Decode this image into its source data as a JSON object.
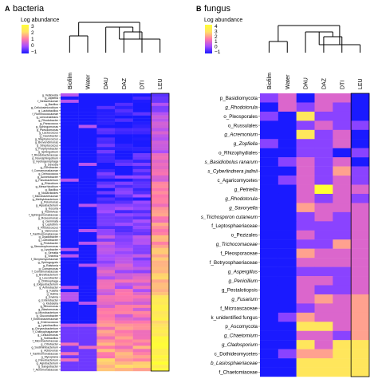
{
  "chart_data": [
    {
      "type": "heatmap",
      "panel_label": "A",
      "title": "bacteria",
      "colorbar": {
        "title": "Log abundance",
        "ticks": [
          "3",
          "2",
          "1",
          "0",
          "−1"
        ],
        "range": [
          -1,
          3
        ],
        "colors": [
          "#1a1aff",
          "#a64dff",
          "#ff77aa",
          "#ffe066",
          "#ffff33"
        ]
      },
      "columns": [
        "Biofilm",
        "Water",
        "DAU",
        "DAZ",
        "DTI",
        "LEU"
      ],
      "rows": [
        "g_Veillonella",
        "g_Alpitella",
        "f_Neisseriaceae",
        "g_Bacillus",
        "g_Cellulosimicrobium",
        "g_Lactobacillus",
        "f_Ruminococcaceae",
        "g_Limnohabitans",
        "g_Rhodobacter",
        "g_Paracoccus",
        "g_Sphingomonas",
        "g_Pseudomonas",
        "g_Lactococcus",
        "g_Caulobacter",
        "g_Staphylococcus",
        "g_Brevundimonas",
        "g_Streptococcus",
        "g_Porphyrobacter",
        "g_Sphingobium",
        "f_Rhodobacteraceae",
        "g_Novosphingobium",
        "g_Hydrogenophaga",
        "g_Devosia",
        "g_Curvibacter",
        "f_Comamonadaceae",
        "g_Deinococcus",
        "g_Acinetobacter",
        "g_Flavobacterium",
        "g_Rhizobium",
        "g_Mesorhizobium",
        "g_Bacillus",
        "g_Nocardioides",
        "f_Microbacteriaceae",
        "g_Methylobacterium",
        "g_Pelomonas",
        "g_Aquabacterium",
        "g_Kocuria",
        "g_Rubrivivax",
        "f_Sphingomonadaceae",
        "g_Roseomonas",
        "g_Gemmata",
        "g_Leptothrix",
        "g_Rhodococcus",
        "g_Variovorax",
        "f_Xanthomonadaceae",
        "g_Dyadobacter",
        "g_Luteolibacter",
        "g_Pedobacter",
        "g_Stenotrophomonas",
        "g_Lysobacter",
        "g_Serratia",
        "g_Shinella",
        "f_Streptomycetaceae",
        "g_Sphingopyxis",
        "g_Ralstonia",
        "g_Comamonas",
        "f_Comamonadaceae",
        "g_Brevibacterium",
        "g_Leucobacter",
        "g_Chitinophaga",
        "g_Exiguobacterium",
        "g_Arthrobacter",
        "g_Kaistia",
        "g_Hafnia",
        "g_Erwinia",
        "g_Enterobacter",
        "g_Klebsiella",
        "g_Aeromonas",
        "g_Blastomonas",
        "g_Microbacterium",
        "g_Gluconobacter",
        "f_Enterobacteriaceae",
        "g_Enterococcus",
        "g_Lysinibacillus",
        "g_Chryseobacterium",
        "f_Chitinophagaceae",
        "g_Cellulomonas",
        "g_Solibacillus",
        "f_Microbacteriaceae",
        "g_Citrobacter",
        "g_Sediminibacterium",
        "g_Acidovorax",
        "f_Xanthomonadaceae",
        "g_Mycoplana",
        "g_Flavobacterium",
        "g_Agrobacterium",
        "g_Sanguibacter",
        "f_Aeromonadaceae"
      ],
      "dendrogram": {
        "groups": [
          [
            "Biofilm",
            "Water"
          ],
          [
            "DAU",
            "DAZ",
            "DTI"
          ],
          [
            "LEU"
          ]
        ]
      }
    },
    {
      "type": "heatmap",
      "panel_label": "B",
      "title": "fungus",
      "colorbar": {
        "title": "Log abundance",
        "ticks": [
          "4",
          "3",
          "2",
          "1",
          "0",
          "−1"
        ],
        "range": [
          -1,
          4
        ],
        "colors": [
          "#1a1aff",
          "#a64dff",
          "#ff77aa",
          "#ffe066",
          "#ffff33"
        ]
      },
      "columns": [
        "Biofilm",
        "Water",
        "DAU",
        "DAZ",
        "DTI",
        "LEU"
      ],
      "rows": [
        "p_Basidiomycota",
        "g_Rhodotorula",
        "o_Pleosporales",
        "o_Russulales",
        "g_Acremonium",
        "g_Zopfiella",
        "o_Rhizophydiales",
        "s_Basidiobolus ranarum",
        "s_Cyberlindnera jadinii",
        "c_Agaricomycetes",
        "g_Petriella",
        "g_Rhodotorula",
        "g_Savoryella",
        "s_Trichosporon cutaneum",
        "f_Leptosphaeriaceae",
        "o_Pezizales",
        "g_Trichocomaceae",
        "f_Pleosporaceae",
        "f_Botryosphaeriaceae",
        "g_Aspergillus",
        "g_Penicillium",
        "g_Pestalotiopsis",
        "g_Fusarium",
        "f_Microascaceae",
        "k_unidentified fungus",
        "p_Ascomycota",
        "g_Chaetomium",
        "g_Cladosporium",
        "c_Dothideomycetes",
        "b_Lasiosphaeriaceae",
        "f_Chaetomiaceae"
      ],
      "values": [
        [
          0,
          1,
          -1,
          1,
          1,
          -1
        ],
        [
          -1,
          1,
          0,
          1,
          0,
          -1
        ],
        [
          0,
          -1,
          3,
          0,
          0,
          -1
        ],
        [
          -1,
          -1,
          0,
          1,
          0,
          0
        ],
        [
          -1,
          -1,
          3,
          0,
          1,
          -1
        ],
        [
          0,
          -1,
          0,
          0,
          1,
          -1
        ],
        [
          -1,
          -1,
          0,
          0,
          -1,
          0
        ],
        [
          -1,
          0,
          1,
          0,
          1,
          -1
        ],
        [
          -1,
          -1,
          1,
          0,
          2,
          0
        ],
        [
          -1,
          0,
          1,
          0,
          1,
          0
        ],
        [
          -1,
          -1,
          1,
          4,
          1,
          1
        ],
        [
          -1,
          -1,
          1,
          0,
          1,
          0
        ],
        [
          -1,
          -1,
          2,
          1,
          1,
          1
        ],
        [
          -1,
          -1,
          0,
          1,
          0,
          1
        ],
        [
          -1,
          -1,
          0,
          0,
          0,
          1
        ],
        [
          -1,
          -1,
          1,
          0,
          0,
          1
        ],
        [
          -1,
          -1,
          0,
          0,
          2,
          1
        ],
        [
          -1,
          -1,
          2,
          1,
          1,
          1
        ],
        [
          -1,
          -1,
          1,
          1,
          1,
          1
        ],
        [
          -1,
          -1,
          0,
          0,
          0,
          1
        ],
        [
          -1,
          -1,
          1,
          1,
          0,
          1
        ],
        [
          -1,
          -1,
          1,
          0,
          0,
          1
        ],
        [
          -1,
          -1,
          1,
          2,
          1,
          2
        ],
        [
          -1,
          -1,
          0,
          1,
          1,
          2
        ],
        [
          -1,
          0,
          2,
          1,
          1,
          2
        ],
        [
          -1,
          -1,
          3,
          3,
          1,
          2
        ],
        [
          -1,
          -1,
          1,
          1,
          0,
          2
        ],
        [
          -1,
          -1,
          3,
          1,
          3,
          3
        ],
        [
          -1,
          0,
          2,
          2,
          3,
          3
        ],
        [
          -1,
          -1,
          3,
          3,
          3,
          3
        ],
        [
          -1,
          -1,
          3,
          3,
          3,
          3
        ]
      ],
      "italic_rows": [
        1,
        4,
        5,
        7,
        8,
        10,
        11,
        12,
        13,
        16,
        19,
        20,
        22,
        26,
        27,
        29
      ],
      "dendrogram": {
        "groups": [
          [
            "Biofilm",
            "Water"
          ],
          [
            "DAU",
            "DAZ",
            "DTI"
          ],
          [
            "LEU"
          ]
        ]
      }
    }
  ]
}
